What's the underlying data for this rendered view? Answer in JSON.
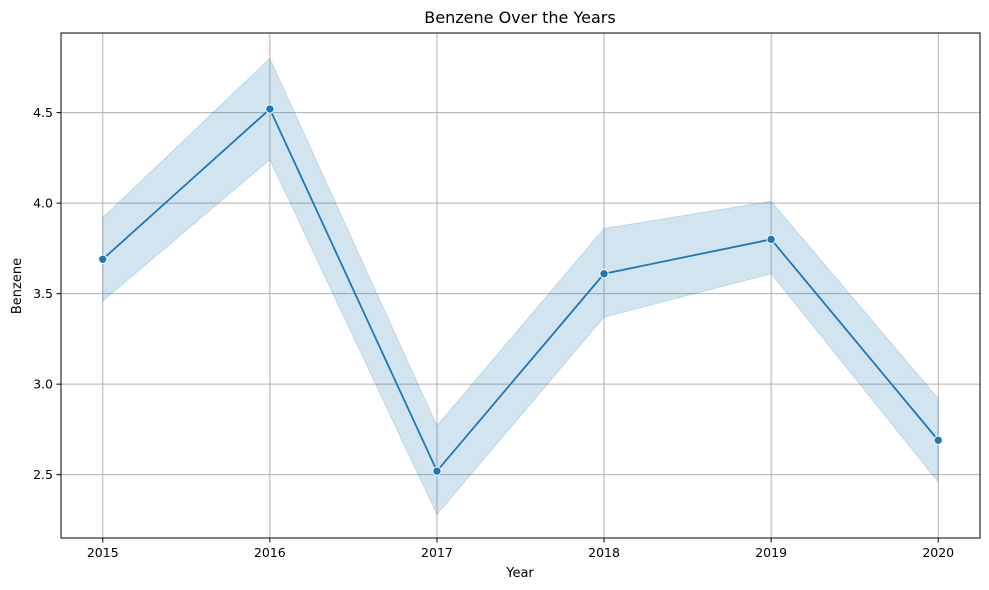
{
  "chart_data": {
    "type": "line",
    "title": "Benzene Over the Years",
    "xlabel": "Year",
    "ylabel": "Benzene",
    "x": [
      2015,
      2016,
      2017,
      2018,
      2019,
      2020
    ],
    "x_tick_labels": [
      "2015",
      "2016",
      "2017",
      "2018",
      "2019",
      "2020"
    ],
    "xlim": [
      2014.75,
      2020.25
    ],
    "ylim": [
      2.15,
      4.94
    ],
    "y_ticks": [
      2.5,
      3.0,
      3.5,
      4.0,
      4.5
    ],
    "y_tick_labels": [
      "2.5",
      "3.0",
      "3.5",
      "4.0",
      "4.5"
    ],
    "grid": true,
    "series": [
      {
        "values": [
          3.69,
          4.52,
          2.52,
          3.61,
          3.8,
          2.69
        ],
        "ci_low": [
          3.46,
          4.24,
          2.28,
          3.37,
          3.61,
          2.46
        ],
        "ci_high": [
          3.92,
          4.8,
          2.77,
          3.86,
          4.01,
          2.92
        ],
        "color": "#1f77b4",
        "band_color": "#1f77b4",
        "marker": "circle"
      }
    ]
  }
}
